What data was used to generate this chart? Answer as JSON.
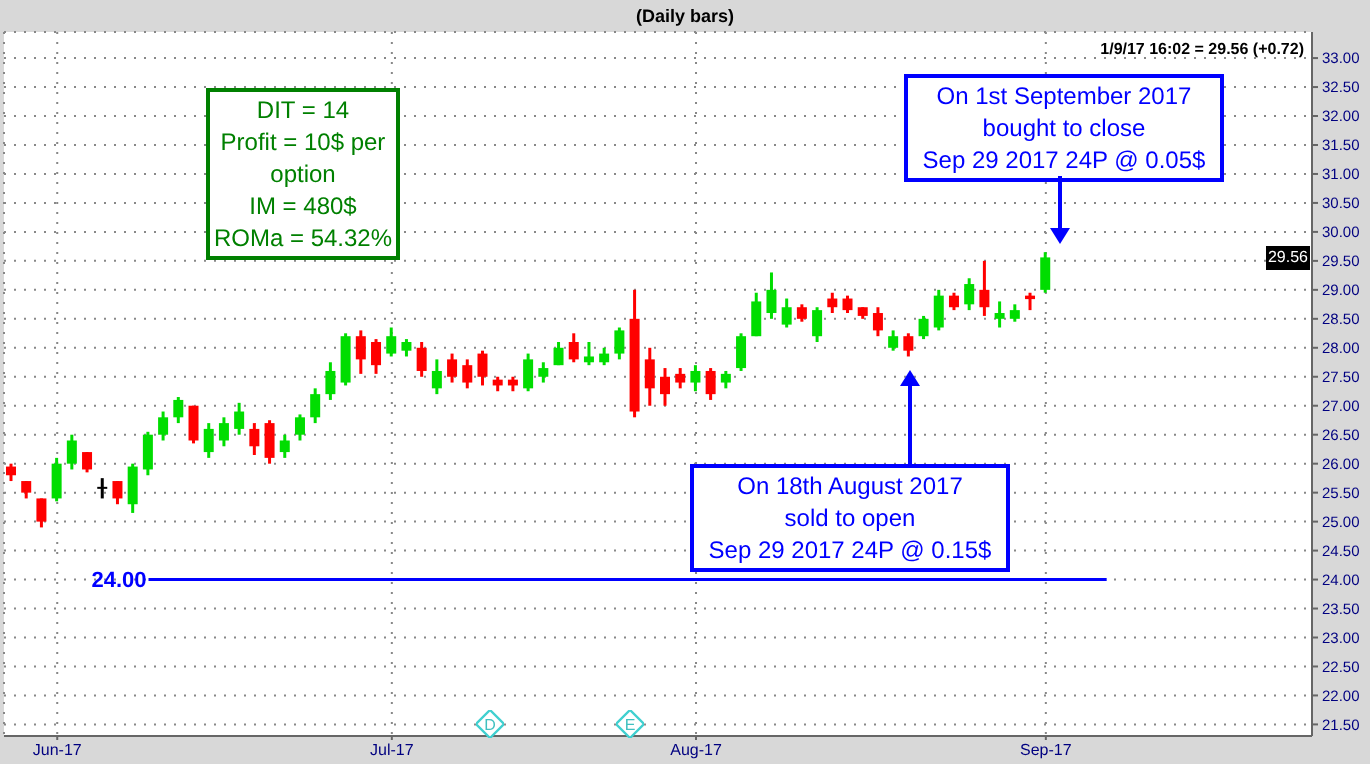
{
  "chart_data": {
    "type": "candlestick",
    "title": "(Daily bars)",
    "subtitle": "1/9/17 16:02 = 29.56 (+0.72)",
    "categories": [
      null,
      null,
      null,
      "Jun-17",
      null,
      null,
      null,
      null,
      null,
      null,
      null,
      null,
      null,
      null,
      null,
      null,
      null,
      null,
      null,
      null,
      null,
      null,
      null,
      null,
      null,
      "Jul-17",
      null,
      null,
      null,
      null,
      null,
      null,
      null,
      null,
      null,
      null,
      null,
      null,
      null,
      null,
      null,
      null,
      null,
      null,
      null,
      "Aug-17",
      null,
      null,
      null,
      null,
      null,
      null,
      null,
      null,
      null,
      null,
      null,
      null,
      null,
      null,
      null,
      null,
      null,
      null,
      null,
      null,
      null,
      null,
      "Sep-17",
      null,
      null,
      null,
      null,
      null,
      null,
      null,
      null,
      null,
      null,
      null,
      null,
      null,
      null,
      null,
      null,
      null
    ],
    "ohlc": [
      [
        25.95,
        26.0,
        25.7,
        25.8
      ],
      [
        25.7,
        25.7,
        25.4,
        25.5
      ],
      [
        25.4,
        25.4,
        24.9,
        25.0
      ],
      [
        25.4,
        26.1,
        25.35,
        26.0
      ],
      [
        26.0,
        26.5,
        25.9,
        26.4
      ],
      [
        26.2,
        26.2,
        25.85,
        25.9
      ],
      [
        25.6,
        25.75,
        25.4,
        25.6
      ],
      [
        25.7,
        25.7,
        25.3,
        25.4
      ],
      [
        25.3,
        26.0,
        25.15,
        25.95
      ],
      [
        25.9,
        26.55,
        25.8,
        26.5
      ],
      [
        26.5,
        26.9,
        26.4,
        26.8
      ],
      [
        26.8,
        27.15,
        26.7,
        27.1
      ],
      [
        27.0,
        27.0,
        26.35,
        26.4
      ],
      [
        26.2,
        26.7,
        26.1,
        26.6
      ],
      [
        26.4,
        26.8,
        26.3,
        26.7
      ],
      [
        26.6,
        27.05,
        26.5,
        26.9
      ],
      [
        26.6,
        26.7,
        26.15,
        26.3
      ],
      [
        26.7,
        26.75,
        26.0,
        26.1
      ],
      [
        26.2,
        26.5,
        26.1,
        26.4
      ],
      [
        26.5,
        26.85,
        26.4,
        26.8
      ],
      [
        26.8,
        27.3,
        26.7,
        27.2
      ],
      [
        27.2,
        27.75,
        27.1,
        27.6
      ],
      [
        27.4,
        28.25,
        27.35,
        28.2
      ],
      [
        28.2,
        28.3,
        27.55,
        27.8
      ],
      [
        28.1,
        28.15,
        27.55,
        27.7
      ],
      [
        27.9,
        28.35,
        27.85,
        28.2
      ],
      [
        27.95,
        28.15,
        27.85,
        28.1
      ],
      [
        28.0,
        28.1,
        27.5,
        27.6
      ],
      [
        27.3,
        27.8,
        27.2,
        27.6
      ],
      [
        27.8,
        27.9,
        27.4,
        27.5
      ],
      [
        27.7,
        27.8,
        27.3,
        27.4
      ],
      [
        27.9,
        27.95,
        27.35,
        27.5
      ],
      [
        27.45,
        27.5,
        27.25,
        27.35
      ],
      [
        27.45,
        27.5,
        27.25,
        27.35
      ],
      [
        27.3,
        27.9,
        27.25,
        27.8
      ],
      [
        27.5,
        27.75,
        27.4,
        27.65
      ],
      [
        27.7,
        28.1,
        27.7,
        28.0
      ],
      [
        28.1,
        28.25,
        27.75,
        27.8
      ],
      [
        27.75,
        28.1,
        27.7,
        27.85
      ],
      [
        27.75,
        28.0,
        27.7,
        27.9
      ],
      [
        27.9,
        28.35,
        27.8,
        28.3
      ],
      [
        28.5,
        29.0,
        26.8,
        26.9
      ],
      [
        27.8,
        28.0,
        27.0,
        27.3
      ],
      [
        27.5,
        27.65,
        27.0,
        27.2
      ],
      [
        27.55,
        27.65,
        27.3,
        27.4
      ],
      [
        27.4,
        27.7,
        27.25,
        27.6
      ],
      [
        27.6,
        27.65,
        27.1,
        27.2
      ],
      [
        27.4,
        27.6,
        27.3,
        27.55
      ],
      [
        27.65,
        28.25,
        27.6,
        28.2
      ],
      [
        28.2,
        28.95,
        28.2,
        28.8
      ],
      [
        28.6,
        29.3,
        28.5,
        29.0
      ],
      [
        28.4,
        28.85,
        28.35,
        28.7
      ],
      [
        28.7,
        28.75,
        28.45,
        28.5
      ],
      [
        28.2,
        28.7,
        28.1,
        28.65
      ],
      [
        28.85,
        28.95,
        28.6,
        28.7
      ],
      [
        28.85,
        28.9,
        28.6,
        28.65
      ],
      [
        28.7,
        28.7,
        28.5,
        28.55
      ],
      [
        28.6,
        28.7,
        28.2,
        28.3
      ],
      [
        28.0,
        28.3,
        27.95,
        28.2
      ],
      [
        28.2,
        28.25,
        27.85,
        27.95
      ],
      [
        28.2,
        28.55,
        28.15,
        28.5
      ],
      [
        28.35,
        29.0,
        28.3,
        28.9
      ],
      [
        28.9,
        28.95,
        28.65,
        28.7
      ],
      [
        28.75,
        29.2,
        28.65,
        29.1
      ],
      [
        29.0,
        29.5,
        28.55,
        28.7
      ],
      [
        28.5,
        28.8,
        28.35,
        28.6
      ],
      [
        28.5,
        28.75,
        28.45,
        28.65
      ],
      [
        28.9,
        28.95,
        28.65,
        28.84
      ],
      [
        29.0,
        29.65,
        28.95,
        29.56
      ],
      null,
      null,
      null,
      null,
      null,
      null,
      null,
      null,
      null,
      null,
      null,
      null,
      null,
      null,
      null,
      null,
      null
    ],
    "colors": [
      "#ff0000",
      "#ff0000",
      "#ff0000",
      "#00dd00",
      "#00dd00",
      "#ff0000",
      "#000000",
      "#ff0000",
      "#00dd00",
      "#00dd00",
      "#00dd00",
      "#00dd00",
      "#ff0000",
      "#00dd00",
      "#00dd00",
      "#00dd00",
      "#ff0000",
      "#ff0000",
      "#00dd00",
      "#00dd00",
      "#00dd00",
      "#00dd00",
      "#00dd00",
      "#ff0000",
      "#ff0000",
      "#00dd00",
      "#00dd00",
      "#ff0000",
      "#00dd00",
      "#ff0000",
      "#ff0000",
      "#ff0000",
      "#ff0000",
      "#ff0000",
      "#00dd00",
      "#00dd00",
      "#00dd00",
      "#ff0000",
      "#00dd00",
      "#00dd00",
      "#00dd00",
      "#ff0000",
      "#ff0000",
      "#ff0000",
      "#ff0000",
      "#00dd00",
      "#ff0000",
      "#00dd00",
      "#00dd00",
      "#00dd00",
      "#00dd00",
      "#00dd00",
      "#ff0000",
      "#00dd00",
      "#ff0000",
      "#ff0000",
      "#ff0000",
      "#ff0000",
      "#00dd00",
      "#ff0000",
      "#00dd00",
      "#00dd00",
      "#ff0000",
      "#00dd00",
      "#ff0000",
      "#00dd00",
      "#00dd00",
      "#ff0000",
      "#00dd00",
      null,
      null,
      null,
      null,
      null,
      null,
      null,
      null,
      null,
      null,
      null,
      null,
      null,
      null,
      null,
      null,
      null
    ],
    "ylim": [
      21.3,
      33.45
    ],
    "yticks": [
      {
        "value": 21.5,
        "label": "21.50"
      },
      {
        "value": 22,
        "label": "22.00"
      },
      {
        "value": 22.5,
        "label": "22.50"
      },
      {
        "value": 23,
        "label": "23.00"
      },
      {
        "value": 23.5,
        "label": "23.50"
      },
      {
        "value": 24,
        "label": "24.00"
      },
      {
        "value": 24.5,
        "label": "24.50"
      },
      {
        "value": 25,
        "label": "25.00"
      },
      {
        "value": 25.5,
        "label": "25.50"
      },
      {
        "value": 26,
        "label": "26.00"
      },
      {
        "value": 26.5,
        "label": "26.50"
      },
      {
        "value": 27,
        "label": "27.00"
      },
      {
        "value": 27.5,
        "label": "27.50"
      },
      {
        "value": 28,
        "label": "28.00"
      },
      {
        "value": 28.5,
        "label": "28.50"
      },
      {
        "value": 29,
        "label": "29.00"
      },
      {
        "value": 29.5,
        "label": "29.50"
      },
      {
        "value": 30,
        "label": "30.00"
      },
      {
        "value": 30.5,
        "label": "30.50"
      },
      {
        "value": 31,
        "label": "31.00"
      },
      {
        "value": 31.5,
        "label": "31.50"
      },
      {
        "value": 32,
        "label": "32.00"
      },
      {
        "value": 32.5,
        "label": "32.50"
      },
      {
        "value": 33,
        "label": "33.00"
      }
    ],
    "grid": true,
    "ref_lines": [
      {
        "axis": "y",
        "value": 24,
        "label": "24.00",
        "color": "#0000ff"
      }
    ],
    "annotations": [
      "DIT = 14\nProfit = 10$ per option\nIM = 480$\nROMa = 54.32%",
      "On 18th August 2017\nsold to open\nSep 29 2017 24P @ 0.15$",
      "On 1st September 2017\nbought to close\nSep 29 2017 24P @ 0.05$",
      "D",
      "E",
      {
        "text": "29.56",
        "y": 29.56
      }
    ]
  }
}
